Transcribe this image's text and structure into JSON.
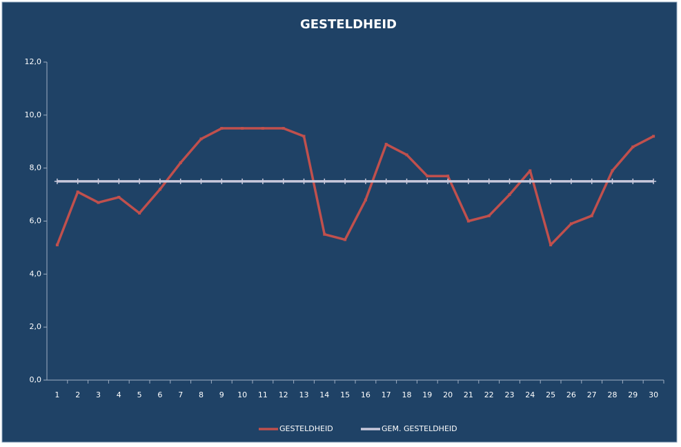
{
  "chart_data": {
    "type": "line",
    "title": "GESTELDHEID",
    "categories": [
      "1",
      "2",
      "3",
      "4",
      "5",
      "6",
      "7",
      "8",
      "9",
      "10",
      "11",
      "12",
      "13",
      "14",
      "15",
      "16",
      "17",
      "18",
      "19",
      "20",
      "21",
      "22",
      "23",
      "24",
      "25",
      "26",
      "27",
      "28",
      "29",
      "30"
    ],
    "series": [
      {
        "name": "GESTELDHEID",
        "color": "#c0504d",
        "values": [
          5.1,
          7.1,
          6.7,
          6.9,
          6.3,
          7.2,
          8.2,
          9.1,
          9.5,
          9.5,
          9.5,
          9.5,
          9.2,
          5.5,
          5.3,
          6.8,
          8.9,
          8.5,
          7.7,
          7.7,
          6.0,
          6.2,
          7.0,
          7.9,
          5.1,
          5.9,
          6.2,
          7.9,
          8.8,
          9.2
        ]
      },
      {
        "name": "GEM. GESTELDHEID",
        "color": "#c9c9dc",
        "values": [
          7.5,
          7.5,
          7.5,
          7.5,
          7.5,
          7.5,
          7.5,
          7.5,
          7.5,
          7.5,
          7.5,
          7.5,
          7.5,
          7.5,
          7.5,
          7.5,
          7.5,
          7.5,
          7.5,
          7.5,
          7.5,
          7.5,
          7.5,
          7.5,
          7.5,
          7.5,
          7.5,
          7.5,
          7.5,
          7.5
        ]
      }
    ],
    "ylim": [
      0,
      12
    ],
    "yticks": [
      {
        "value": 0,
        "label": "0,0"
      },
      {
        "value": 2,
        "label": "2,0"
      },
      {
        "value": 4,
        "label": "4,0"
      },
      {
        "value": 6,
        "label": "6,0"
      },
      {
        "value": 8,
        "label": "8,0"
      },
      {
        "value": 10,
        "label": "10,0"
      },
      {
        "value": 12,
        "label": "12,0"
      }
    ],
    "grid": false,
    "legend": "bottom"
  }
}
